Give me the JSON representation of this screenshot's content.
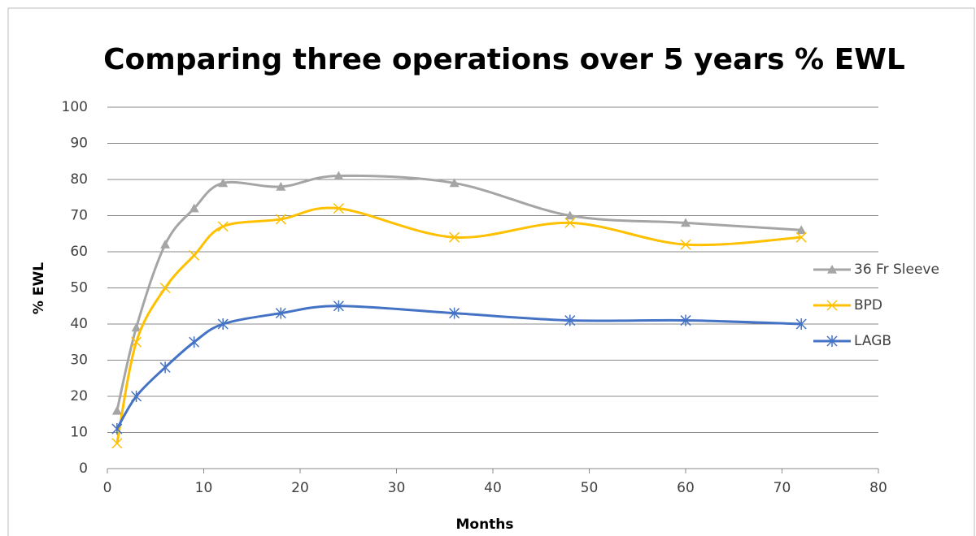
{
  "chart_data": {
    "type": "line",
    "title": "Comparing three operations over 5 years  % EWL",
    "x_label": "Months",
    "y_label": "% EWL",
    "x": [
      1,
      3,
      6,
      9,
      12,
      18,
      24,
      36,
      48,
      60,
      72
    ],
    "series": [
      {
        "name": "36 Fr Sleeve",
        "color": "#a5a5a5",
        "marker": "triangle",
        "values": [
          16,
          39,
          62,
          72,
          79,
          78,
          81,
          79,
          70,
          68,
          66
        ]
      },
      {
        "name": "BPD",
        "color": "#ffc000",
        "marker": "x",
        "values": [
          7,
          35,
          50,
          59,
          67,
          69,
          72,
          64,
          68,
          62,
          64
        ]
      },
      {
        "name": "LAGB",
        "color": "#4472c4",
        "marker": "star",
        "values": [
          11,
          20,
          28,
          35,
          40,
          43,
          45,
          43,
          41,
          41,
          40
        ]
      }
    ],
    "xlim": [
      0,
      80
    ],
    "xticks": [
      0,
      10,
      20,
      30,
      40,
      50,
      60,
      70,
      80
    ],
    "ylim": [
      0,
      100
    ],
    "yticks": [
      0,
      10,
      20,
      30,
      40,
      50,
      60,
      70,
      80,
      90,
      100
    ],
    "grid": true,
    "smooth": true,
    "legend": "right"
  }
}
